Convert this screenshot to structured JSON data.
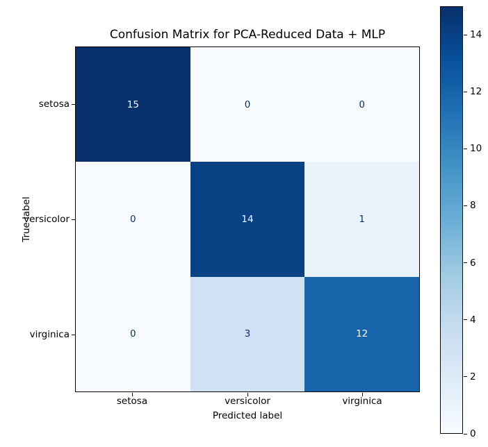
{
  "figure": {
    "background": "#ffffff",
    "text_color": "#000000"
  },
  "chart_data": {
    "type": "heatmap",
    "title": "Confusion Matrix for PCA-Reduced Data + MLP",
    "xlabel": "Predicted label",
    "ylabel": "True label",
    "x_categories": [
      "setosa",
      "versicolor",
      "virginica"
    ],
    "y_categories": [
      "setosa",
      "versicolor",
      "virginica"
    ],
    "matrix": [
      [
        15,
        0,
        0
      ],
      [
        0,
        14,
        1
      ],
      [
        0,
        3,
        12
      ]
    ],
    "vmin": 0,
    "vmax": 15,
    "colormap": "Blues",
    "colorbar_ticks": [
      0,
      2,
      4,
      6,
      8,
      10,
      12,
      14
    ],
    "colorbar_position": "right",
    "grid": false
  },
  "cells": [
    {
      "value": 15,
      "bg": "#08306b",
      "fg": "#f7fbff"
    },
    {
      "value": 0,
      "bg": "#f7fbff",
      "fg": "#08306b"
    },
    {
      "value": 0,
      "bg": "#f7fbff",
      "fg": "#08306b"
    },
    {
      "value": 0,
      "bg": "#f7fbff",
      "fg": "#08306b"
    },
    {
      "value": 14,
      "bg": "#084285",
      "fg": "#f7fbff"
    },
    {
      "value": 1,
      "bg": "#eaf2fb",
      "fg": "#08306b"
    },
    {
      "value": 0,
      "bg": "#f7fbff",
      "fg": "#08306b"
    },
    {
      "value": 3,
      "bg": "#cfe1f2",
      "fg": "#08306b"
    },
    {
      "value": 12,
      "bg": "#1764ab",
      "fg": "#f7fbff"
    }
  ],
  "colorbar_gradient": [
    "#f7fbff",
    "#deebf7",
    "#c6dbef",
    "#9ecae1",
    "#6baed6",
    "#4292c6",
    "#2171b5",
    "#08519c",
    "#08306b"
  ]
}
